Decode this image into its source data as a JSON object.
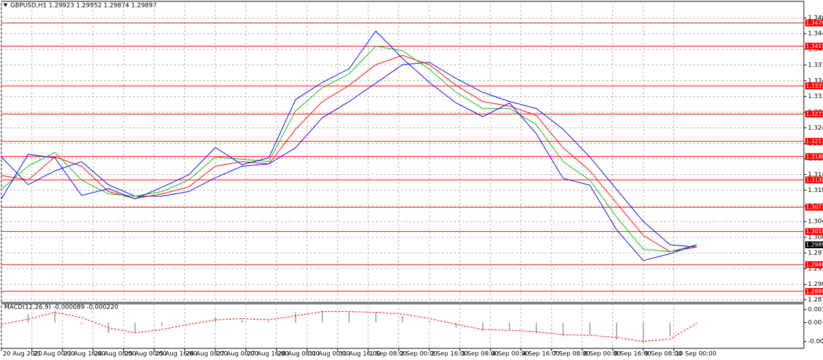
{
  "chart_data": [
    {
      "type": "line",
      "title": "GBPUSD,H1 1.29923 1.29952 1.29874 1.29897",
      "x": [
        0,
        14,
        28,
        42,
        56,
        70,
        84,
        98,
        112,
        126,
        140,
        154,
        168,
        182,
        196,
        210,
        224,
        238,
        252,
        266,
        280,
        294,
        308,
        322,
        336,
        350,
        364
      ],
      "xlim": [
        0,
        420
      ],
      "xticks": [
        {
          "value": 0,
          "label": "20 Aug 2020"
        },
        {
          "value": 16,
          "label": "21 Aug 00:00"
        },
        {
          "value": 32,
          "label": "21 Aug 16:00"
        },
        {
          "value": 48,
          "label": "24 Aug 08:00"
        },
        {
          "value": 64,
          "label": "25 Aug 00:00"
        },
        {
          "value": 80,
          "label": "25 Aug 16:00"
        },
        {
          "value": 96,
          "label": "26 Aug 08:00"
        },
        {
          "value": 112,
          "label": "27 Aug 00:00"
        },
        {
          "value": 128,
          "label": "27 Aug 16:00"
        },
        {
          "value": 144,
          "label": "28 Aug 08:00"
        },
        {
          "value": 160,
          "label": "31 Aug 00:00"
        },
        {
          "value": 176,
          "label": "31 Aug 16:00"
        },
        {
          "value": 192,
          "label": "1 Sep 08:00"
        },
        {
          "value": 208,
          "label": "2 Sep 00:00"
        },
        {
          "value": 224,
          "label": "2 Sep 16:00"
        },
        {
          "value": 240,
          "label": "3 Sep 08:00"
        },
        {
          "value": 256,
          "label": "4 Sep 00:00"
        },
        {
          "value": 272,
          "label": "4 Sep 16:00"
        },
        {
          "value": 288,
          "label": "7 Sep 08:00"
        },
        {
          "value": 304,
          "label": "8 Sep 00:00"
        },
        {
          "value": 320,
          "label": "8 Sep 16:00"
        },
        {
          "value": 336,
          "label": "9 Sep 08:00"
        },
        {
          "value": 352,
          "label": "10 Sep 00:00"
        }
      ],
      "ylim": [
        1.2865,
        1.3517
      ],
      "yticks": [
        {
          "value": 1.3481,
          "label": "1.34810"
        },
        {
          "value": 1.3447,
          "label": "1.34470"
        },
        {
          "value": 1.3413,
          "label": "1.34130"
        },
        {
          "value": 1.3379,
          "label": "1.33790"
        },
        {
          "value": 1.3345,
          "label": "1.33450"
        },
        {
          "value": 1.3311,
          "label": "1.33110"
        },
        {
          "value": 1.3277,
          "label": "1.32770"
        },
        {
          "value": 1.3243,
          "label": "1.32430"
        },
        {
          "value": 1.3209,
          "label": "1.32090"
        },
        {
          "value": 1.3176,
          "label": "1.31760"
        },
        {
          "value": 1.3142,
          "label": "1.31420"
        },
        {
          "value": 1.3108,
          "label": "1.31080"
        },
        {
          "value": 1.3074,
          "label": "1.30740"
        },
        {
          "value": 1.304,
          "label": "1.30400"
        },
        {
          "value": 1.3006,
          "label": "1.30060"
        },
        {
          "value": 1.2972,
          "label": "1.29720"
        },
        {
          "value": 1.2938,
          "label": "1.29380"
        },
        {
          "value": 1.2904,
          "label": "1.29040"
        },
        {
          "value": 1.2871,
          "label": "1.28710"
        }
      ],
      "grid": true,
      "levels": [
        {
          "value": 1.34703,
          "label": "1.34703"
        },
        {
          "value": 1.34199,
          "label": "1.34199"
        },
        {
          "value": 1.33339,
          "label": "1.33339"
        },
        {
          "value": 1.3273,
          "label": "1.32730"
        },
        {
          "value": 1.32139,
          "label": "1.32139"
        },
        {
          "value": 1.31807,
          "label": "1.31807"
        },
        {
          "value": 1.31302,
          "label": "1.31302"
        },
        {
          "value": 1.30711,
          "label": "1.30711"
        },
        {
          "value": 1.30185,
          "label": "1.30185"
        },
        {
          "value": 1.29468,
          "label": "1.29468"
        },
        {
          "value": 1.28889,
          "label": "1.28889"
        }
      ],
      "level_color": "#ff0000",
      "current_price": {
        "value": 1.29897,
        "label": "1.29897"
      },
      "series": [
        {
          "color": "#0000ff",
          "values": [
            1.30892,
            1.31857,
            1.31782,
            1.30966,
            1.31114,
            1.30892,
            1.31144,
            1.31411,
            1.32005,
            1.31634,
            1.31782,
            1.33044,
            1.33415,
            1.33712,
            1.34528,
            1.33934,
            1.33415,
            1.3297,
            1.32673,
            1.3297,
            1.32302,
            1.31337,
            1.31189,
            1.30224,
            1.29556,
            1.29705,
            1.29897
          ]
        },
        {
          "color": "#00c000",
          "values": [
            1.311,
            1.316,
            1.319,
            1.313,
            1.31,
            1.3095,
            1.3105,
            1.313,
            1.318,
            1.3175,
            1.317,
            1.328,
            1.333,
            1.336,
            1.342,
            1.341,
            1.337,
            1.332,
            1.3285,
            1.3285,
            1.325,
            1.317,
            1.313,
            1.305,
            1.298,
            1.2975,
            1.299
          ]
        },
        {
          "color": "#ff0000",
          "values": [
            1.314,
            1.313,
            1.318,
            1.316,
            1.3105,
            1.309,
            1.31,
            1.3115,
            1.316,
            1.317,
            1.3165,
            1.324,
            1.33,
            1.3335,
            1.338,
            1.34,
            1.338,
            1.3335,
            1.33,
            1.329,
            1.327,
            1.32,
            1.315,
            1.308,
            1.301,
            1.2975,
            1.2985
          ]
        },
        {
          "color": "#0000ff",
          "values": [
            1.318,
            1.312,
            1.315,
            1.317,
            1.312,
            1.3095,
            1.3095,
            1.3105,
            1.3135,
            1.316,
            1.3165,
            1.32,
            1.3265,
            1.33,
            1.334,
            1.338,
            1.3385,
            1.335,
            1.332,
            1.33,
            1.3285,
            1.324,
            1.318,
            1.311,
            1.304,
            1.299,
            1.2985
          ]
        }
      ]
    },
    {
      "type": "macd",
      "title": "MACD(12,26,9) -0.000089 -0.000220",
      "x": [
        0,
        14,
        28,
        42,
        56,
        70,
        84,
        98,
        112,
        126,
        140,
        154,
        168,
        182,
        196,
        210,
        224,
        238,
        252,
        266,
        280,
        294,
        308,
        322,
        336,
        350,
        364
      ],
      "xlim": [
        0,
        420
      ],
      "ylim": [
        -0.0075,
        0.0055
      ],
      "yticks": [
        {
          "value": 0.003825,
          "label": "0.003825"
        },
        {
          "value": 0,
          "label": "0.00"
        },
        {
          "value": -0.005542,
          "label": "-0.005542"
        }
      ],
      "series": [
        {
          "color": "#b0b0b0",
          "style": "histogram",
          "values": [
            -0.001,
            0.0025,
            0.0035,
            -0.0005,
            -0.003,
            -0.003,
            -0.001,
            0,
            0.0015,
            0.001,
            0.0005,
            0.003,
            0.0035,
            0.003,
            0.003,
            0.002,
            0.0005,
            -0.0015,
            -0.0025,
            -0.002,
            -0.003,
            -0.004,
            -0.0035,
            -0.005,
            -0.006,
            -0.004,
            -8.9e-05
          ]
        },
        {
          "color": "#ff0000",
          "style": "dashed",
          "values": [
            -0.0005,
            0.001,
            0.003,
            0.0015,
            -0.0015,
            -0.003,
            -0.002,
            -0.0005,
            0.0008,
            0.0012,
            0.0008,
            0.002,
            0.0032,
            0.0032,
            0.003,
            0.0025,
            0.0012,
            -0.0005,
            -0.002,
            -0.0022,
            -0.0027,
            -0.0035,
            -0.0037,
            -0.0043,
            -0.0055,
            -0.0048,
            -0.00022
          ]
        }
      ]
    }
  ]
}
